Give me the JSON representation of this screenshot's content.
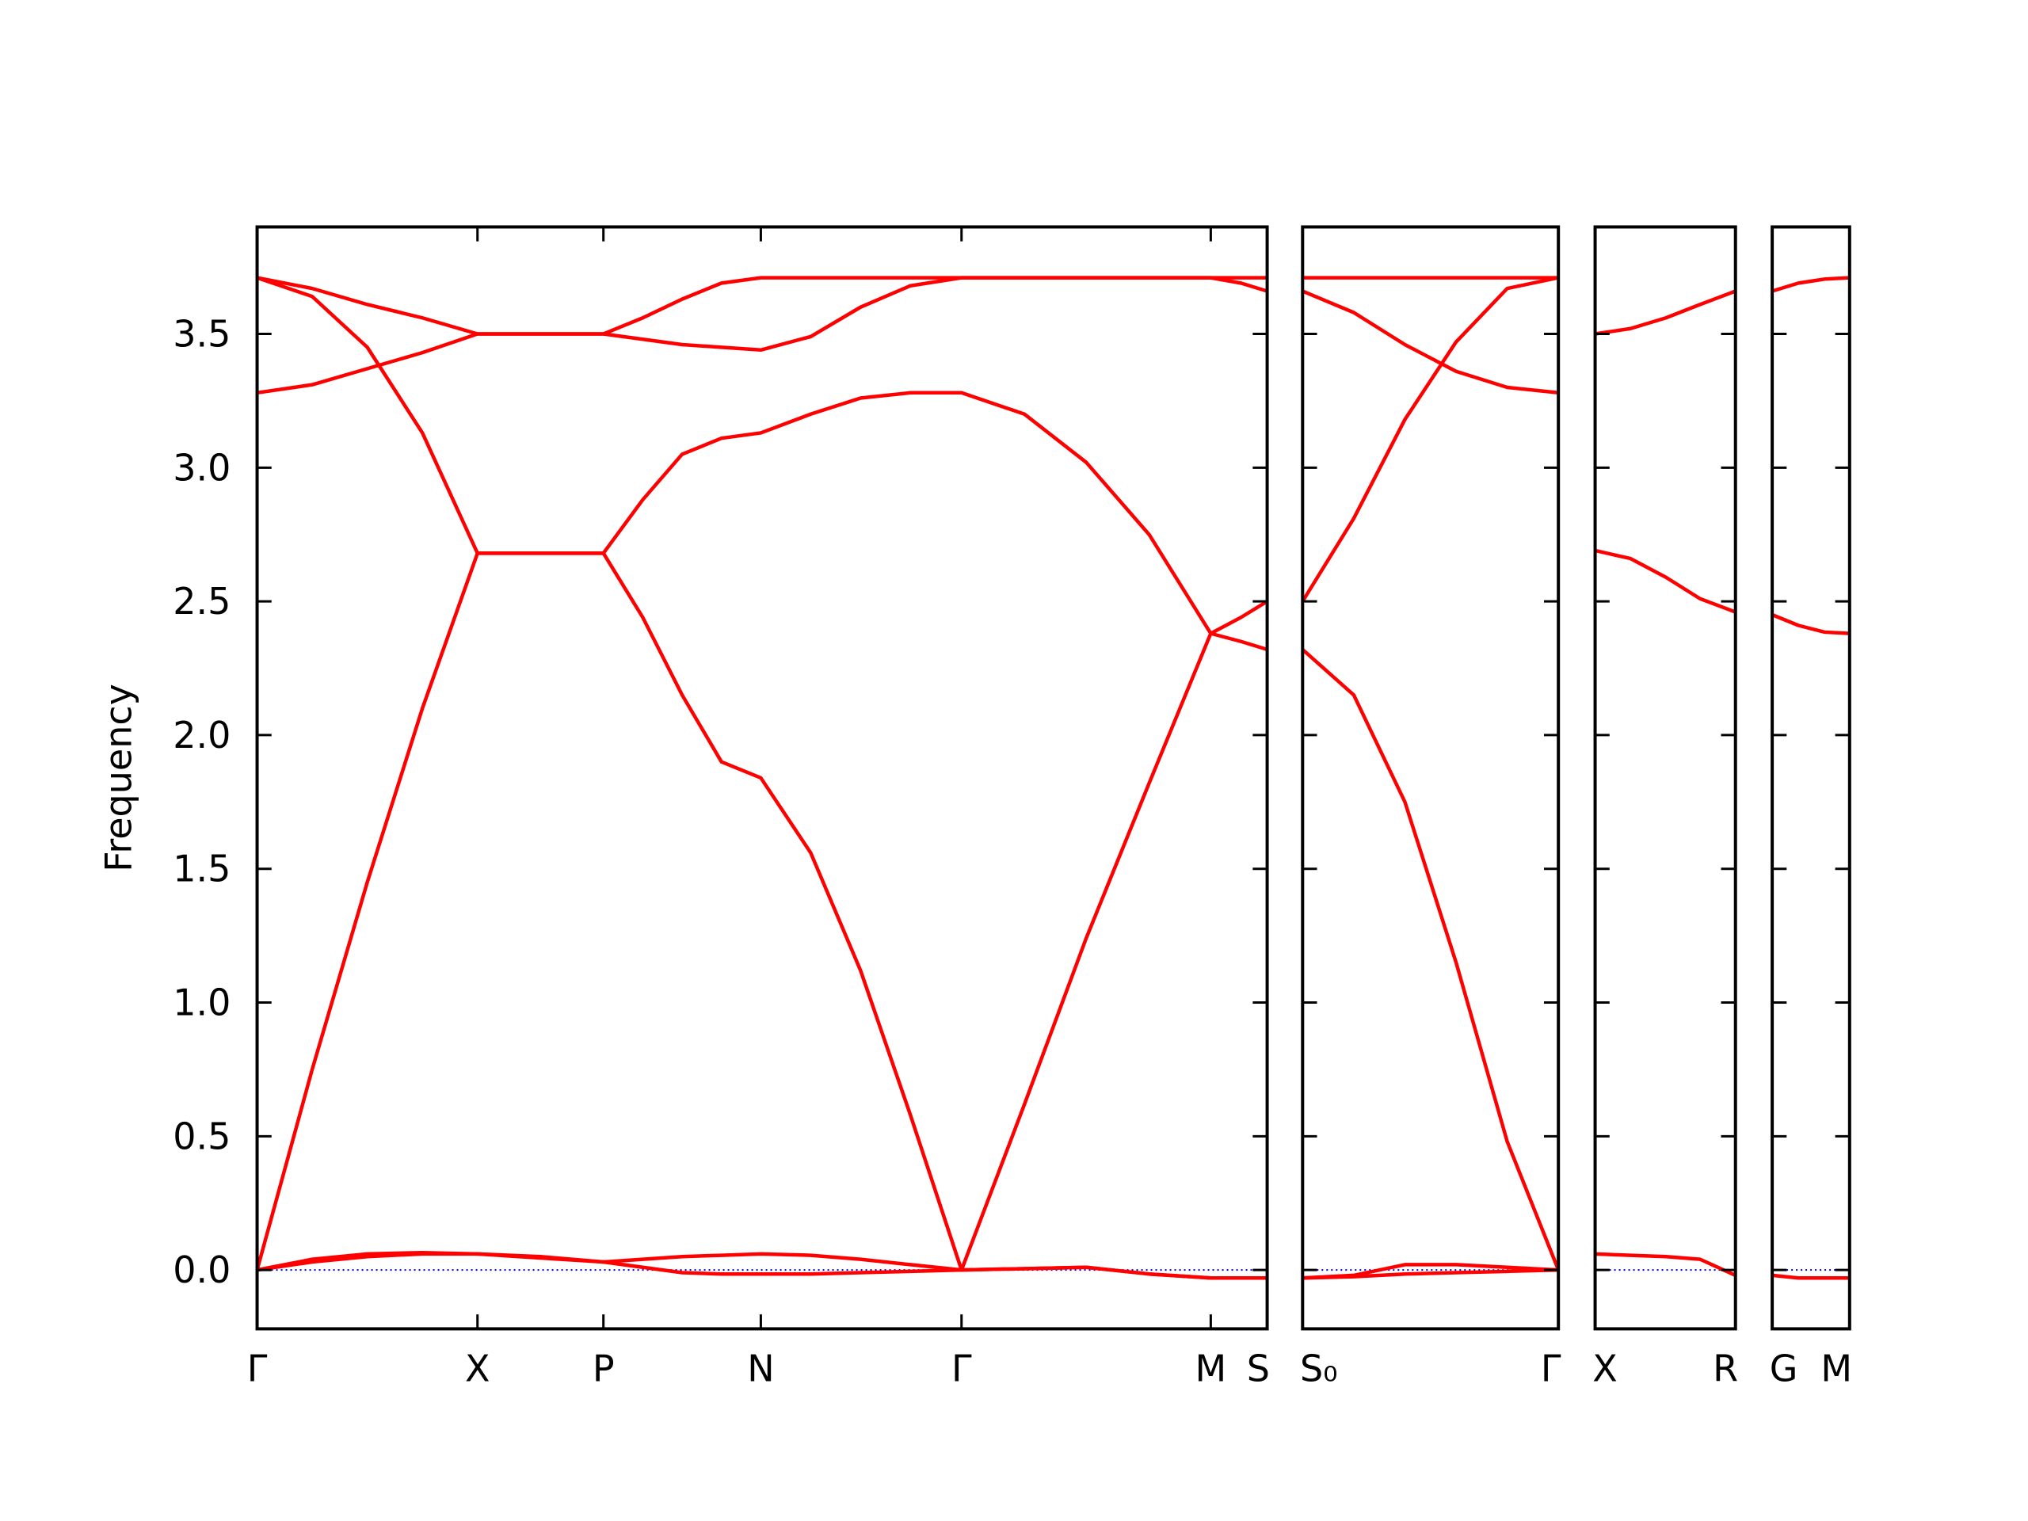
{
  "chart_data": [
    {
      "type": "line",
      "ylabel": "Frequency",
      "color": "#ff0000",
      "hline": 0,
      "hline_color": "#0000cc",
      "tick_direction": "in",
      "show_ytick_labels": true,
      "x": [
        0,
        0.42,
        0.84,
        1.26,
        1.68,
        2.16,
        2.64,
        2.94,
        3.24,
        3.54,
        3.84,
        4.22,
        4.6,
        4.98,
        5.37,
        5.85,
        6.32,
        6.8,
        7.27,
        7.5,
        7.7
      ],
      "xlim": [
        0,
        7.7
      ],
      "ylim": [
        -0.22,
        3.9
      ],
      "xticks": [
        {
          "value": 0,
          "label": "Γ"
        },
        {
          "value": 1.68,
          "label": "X"
        },
        {
          "value": 2.64,
          "label": "P"
        },
        {
          "value": 3.84,
          "label": "N"
        },
        {
          "value": 5.37,
          "label": "Γ"
        },
        {
          "value": 7.27,
          "label": "M"
        },
        {
          "value": 7.7,
          "label": "S"
        }
      ],
      "yticks": [
        {
          "value": 0,
          "label": "0.0"
        },
        {
          "value": 0.5,
          "label": "0.5"
        },
        {
          "value": 1,
          "label": "1.0"
        },
        {
          "value": 1.5,
          "label": "1.5"
        },
        {
          "value": 2,
          "label": "2.0"
        },
        {
          "value": 2.5,
          "label": "2.5"
        },
        {
          "value": 3,
          "label": "3.0"
        },
        {
          "value": 3.5,
          "label": "3.5"
        }
      ],
      "series": [
        {
          "values": [
            0,
            0.75,
            1.45,
            2.1,
            2.68,
            2.68,
            2.68,
            2.44,
            2.15,
            1.9,
            1.84,
            1.56,
            1.12,
            0.58,
            0,
            0.62,
            1.24,
            1.82,
            2.38,
            2.35,
            2.32
          ]
        },
        {
          "values": [
            3.71,
            3.64,
            3.45,
            3.13,
            2.68,
            2.68,
            2.68,
            2.88,
            3.05,
            3.11,
            3.13,
            3.2,
            3.26,
            3.28,
            3.28,
            3.2,
            3.02,
            2.75,
            2.38,
            2.44,
            2.5
          ]
        },
        {
          "values": [
            3.28,
            3.31,
            3.37,
            3.43,
            3.5,
            3.5,
            3.5,
            3.48,
            3.46,
            3.45,
            3.44,
            3.49,
            3.6,
            3.68,
            3.71,
            3.71,
            3.71,
            3.71,
            3.71,
            3.69,
            3.66
          ]
        },
        {
          "values": [
            3.71,
            3.67,
            3.61,
            3.56,
            3.5,
            3.5,
            3.5,
            3.56,
            3.63,
            3.69,
            3.71,
            3.71,
            3.71,
            3.71,
            3.71,
            3.71,
            3.71,
            3.71,
            3.71,
            3.71,
            3.71
          ]
        },
        {
          "values": [
            0,
            0.03,
            0.05,
            0.06,
            0.06,
            0.05,
            0.03,
            0.01,
            -0.01,
            -0.015,
            -0.015,
            -0.015,
            -0.01,
            -0.005,
            0,
            0.005,
            0.01,
            -0.015,
            -0.03,
            -0.03,
            -0.03
          ]
        },
        {
          "values": [
            0,
            0.04,
            0.06,
            0.065,
            0.06,
            0.045,
            0.03,
            0.04,
            0.05,
            0.055,
            0.06,
            0.055,
            0.04,
            0.02,
            0,
            0.005,
            0.01,
            -0.015,
            -0.03,
            -0.03,
            -0.03
          ]
        }
      ]
    },
    {
      "type": "line",
      "color": "#ff0000",
      "hline": 0,
      "hline_color": "#0000cc",
      "tick_direction": "in",
      "show_ytick_labels": false,
      "x": [
        0,
        0.39,
        0.78,
        1.17,
        1.56,
        1.95
      ],
      "xlim": [
        0,
        1.95
      ],
      "ylim": [
        -0.22,
        3.9
      ],
      "xticks": [
        {
          "value": 0,
          "label": "S₀"
        },
        {
          "value": 1.95,
          "label": "Γ"
        }
      ],
      "yticks": [
        0,
        0.5,
        1,
        1.5,
        2,
        2.5,
        3,
        3.5
      ],
      "series": [
        {
          "values": [
            3.71,
            3.71,
            3.71,
            3.71,
            3.71,
            3.71
          ]
        },
        {
          "values": [
            3.66,
            3.58,
            3.46,
            3.36,
            3.3,
            3.28
          ]
        },
        {
          "values": [
            2.5,
            2.81,
            3.18,
            3.47,
            3.67,
            3.71
          ]
        },
        {
          "values": [
            2.32,
            2.15,
            1.75,
            1.15,
            0.48,
            0
          ]
        },
        {
          "values": [
            -0.03,
            -0.02,
            0.02,
            0.02,
            0.01,
            0
          ]
        },
        {
          "values": [
            -0.03,
            -0.025,
            -0.015,
            -0.01,
            -0.005,
            0
          ]
        }
      ]
    },
    {
      "type": "line",
      "color": "#ff0000",
      "hline": 0,
      "hline_color": "#0000cc",
      "tick_direction": "in",
      "show_ytick_labels": false,
      "x": [
        0,
        0.27,
        0.54,
        0.8,
        1.07
      ],
      "xlim": [
        0,
        1.07
      ],
      "ylim": [
        -0.22,
        3.9
      ],
      "xticks": [
        {
          "value": 0,
          "label": "X"
        },
        {
          "value": 1.07,
          "label": "R"
        }
      ],
      "yticks": [
        0,
        0.5,
        1,
        1.5,
        2,
        2.5,
        3,
        3.5
      ],
      "series": [
        {
          "values": [
            3.5,
            3.52,
            3.56,
            3.61,
            3.66
          ]
        },
        {
          "values": [
            2.69,
            2.66,
            2.59,
            2.51,
            2.46
          ]
        },
        {
          "values": [
            0.06,
            0.055,
            0.05,
            0.04,
            -0.02
          ]
        }
      ]
    },
    {
      "type": "line",
      "color": "#ff0000",
      "hline": 0,
      "hline_color": "#0000cc",
      "tick_direction": "in",
      "show_ytick_labels": false,
      "x": [
        0,
        0.2,
        0.4,
        0.59
      ],
      "xlim": [
        0,
        0.59
      ],
      "ylim": [
        -0.22,
        3.9
      ],
      "xticks": [
        {
          "value": 0,
          "label": "G"
        },
        {
          "value": 0.59,
          "label": "M"
        }
      ],
      "yticks": [
        0,
        0.5,
        1,
        1.5,
        2,
        2.5,
        3,
        3.5
      ],
      "series": [
        {
          "values": [
            3.66,
            3.69,
            3.705,
            3.71
          ]
        },
        {
          "values": [
            2.45,
            2.41,
            2.385,
            2.38
          ]
        },
        {
          "values": [
            -0.02,
            -0.03,
            -0.03,
            -0.03
          ]
        }
      ]
    }
  ]
}
